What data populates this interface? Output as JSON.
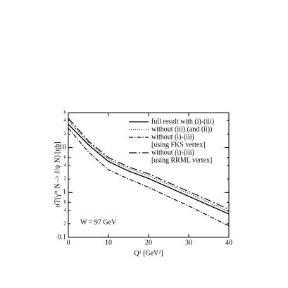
{
  "chart_data": {
    "type": "line",
    "x_label": "Q² [GeV²]",
    "y_label": "σT(γ* N -> J/ψ N)  [nb]",
    "annotation": "W = 97 GeV",
    "x": [
      0,
      5,
      10,
      15,
      20,
      25,
      30,
      35,
      40
    ],
    "series": [
      {
        "name": "full result with (i)-(iii)",
        "color": "#000000",
        "dash": "solid",
        "values": [
          33,
          11.6,
          4.9,
          3.0,
          2.05,
          1.3,
          0.82,
          0.52,
          0.33
        ]
      },
      {
        "name": "without (iii) (and (ii))",
        "color": "#000000",
        "dash": "dotted",
        "values": [
          40,
          13,
          5.5,
          3.4,
          2.35,
          1.5,
          0.95,
          0.6,
          0.37
        ]
      },
      {
        "name": "without (i)-(iii)",
        "sublabel": "[using FKS vertex]",
        "color": "#000000",
        "dash": "dash-dot",
        "values": [
          27,
          8,
          3.2,
          2.0,
          1.3,
          0.8,
          0.5,
          0.3,
          0.18
        ]
      },
      {
        "name": "without (i)-(iii)",
        "sublabel": "[using RRML vertex]",
        "color": "#000000",
        "dash": "long-dash-dot",
        "values": [
          45,
          14,
          6.0,
          3.7,
          2.6,
          1.65,
          1.05,
          0.67,
          0.42
        ]
      }
    ],
    "xlim": [
      0,
      40
    ],
    "xticks": [
      0,
      10,
      20,
      30,
      40
    ],
    "ylim": [
      0.1,
      60
    ],
    "ylog": true,
    "yticks": [
      0.1,
      {
        "value": 0.2,
        "label": "2"
      },
      {
        "value": 0.4,
        "label": "4"
      },
      {
        "value": 0.6,
        "label": "6"
      },
      1,
      {
        "value": 2,
        "label": "2"
      },
      {
        "value": 4,
        "label": "4"
      },
      {
        "value": 6,
        "label": "6"
      },
      10,
      {
        "value": 20,
        "label": "2"
      },
      {
        "value": 40,
        "label": "4"
      },
      {
        "value": 60,
        "label": "6"
      }
    ],
    "legend": "upper right"
  }
}
